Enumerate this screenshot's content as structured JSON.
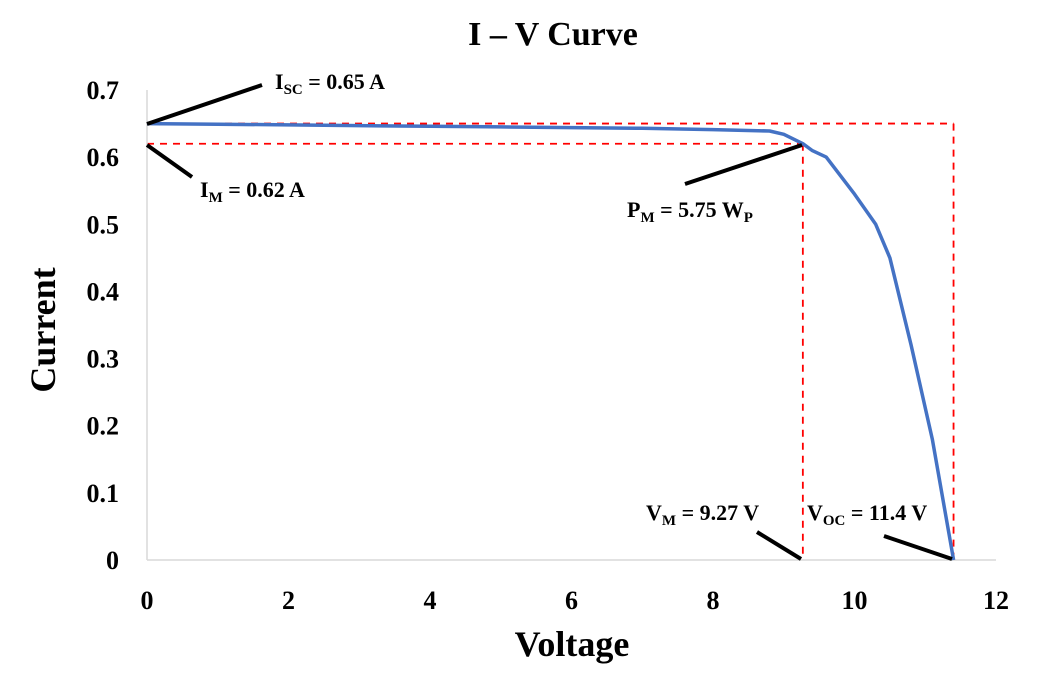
{
  "chart_data": {
    "type": "line",
    "title": "I – V Curve",
    "xlabel": "Voltage",
    "ylabel": "Current",
    "xlim": [
      0,
      12
    ],
    "ylim": [
      0,
      0.7
    ],
    "x_ticks": [
      "0",
      "2",
      "4",
      "6",
      "8",
      "10",
      "12"
    ],
    "y_ticks": [
      "0",
      "0.1",
      "0.2",
      "0.3",
      "0.4",
      "0.5",
      "0.6",
      "0.7"
    ],
    "grid": false,
    "series": [
      {
        "color": "#4472c4",
        "x": [
          0,
          1,
          2,
          3,
          4,
          5,
          6,
          7,
          8,
          8.8,
          9.0,
          9.27,
          9.4,
          9.6,
          10.0,
          10.3,
          10.5,
          10.8,
          11.1,
          11.4
        ],
        "y": [
          0.65,
          0.649,
          0.648,
          0.647,
          0.646,
          0.645,
          0.644,
          0.643,
          0.641,
          0.639,
          0.634,
          0.62,
          0.61,
          0.6,
          0.545,
          0.5,
          0.45,
          0.32,
          0.18,
          0.0
        ]
      }
    ],
    "reference_lines": {
      "color": "#ff0000",
      "isc": 0.65,
      "im": 0.62,
      "vm": 9.27,
      "voc": 11.4
    },
    "annotations": {
      "isc": {
        "main": "I",
        "sub": "SC",
        "rest": " = 0.65 A"
      },
      "im": {
        "main": "I",
        "sub": "M",
        "rest": " = 0.62 A"
      },
      "pm": {
        "main": "P",
        "sub": "M",
        "rest": " = 5.75 W",
        "sub2": "P"
      },
      "vm": {
        "main": "V",
        "sub": "M",
        "rest": " = 9.27 V"
      },
      "voc": {
        "main": "V",
        "sub": "OC",
        "rest": " = 11.4 V"
      }
    }
  }
}
